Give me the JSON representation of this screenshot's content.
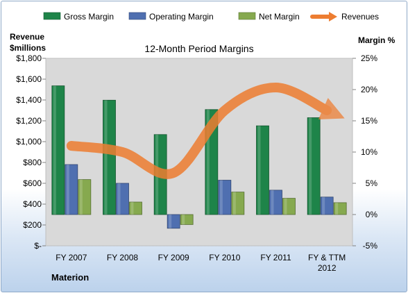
{
  "chart_data": {
    "type": "bar",
    "title": "12-Month Period Margins",
    "source_label": "Materion",
    "categories": [
      "FY 2007",
      "FY 2008",
      "FY 2009",
      "FY 2010",
      "FY 2011",
      "FY & TTM 2012"
    ],
    "left_axis": {
      "label_line1": "Revenue",
      "label_line2": "$millions",
      "ylim": [
        0,
        1800
      ],
      "ticks": [
        0,
        200,
        400,
        600,
        800,
        1000,
        1200,
        1400,
        1600,
        1800
      ],
      "tick_labels": [
        "$-",
        "$200",
        "$400",
        "$600",
        "$800",
        "$1,000",
        "$1,200",
        "$1,400",
        "$1,600",
        "$1,800"
      ]
    },
    "right_axis": {
      "label": "Margin %",
      "ylim": [
        -5,
        25
      ],
      "ticks": [
        -5,
        0,
        5,
        10,
        15,
        20,
        25
      ],
      "tick_labels": [
        "-5%",
        "0%",
        "5%",
        "10%",
        "15%",
        "20%",
        "25%"
      ]
    },
    "series": [
      {
        "name": "Gross Margin",
        "axis": "right",
        "kind": "bar",
        "color": "#1e8449",
        "values": [
          20.6,
          18.3,
          12.8,
          16.8,
          14.2,
          15.5
        ]
      },
      {
        "name": "Operating Margin",
        "axis": "right",
        "kind": "bar",
        "color": "#4f6fb0",
        "values": [
          8.0,
          5.0,
          -2.2,
          5.5,
          3.9,
          2.8
        ]
      },
      {
        "name": "Net Margin",
        "axis": "right",
        "kind": "bar",
        "color": "#86a94f",
        "values": [
          5.6,
          2.0,
          -1.6,
          3.6,
          2.6,
          1.9
        ]
      },
      {
        "name": "Revenues",
        "axis": "left",
        "kind": "line",
        "color": "#ed7d31",
        "values": [
          960,
          900,
          700,
          1300,
          1520,
          1300
        ]
      }
    ],
    "legend_position": "top",
    "grid": false
  }
}
